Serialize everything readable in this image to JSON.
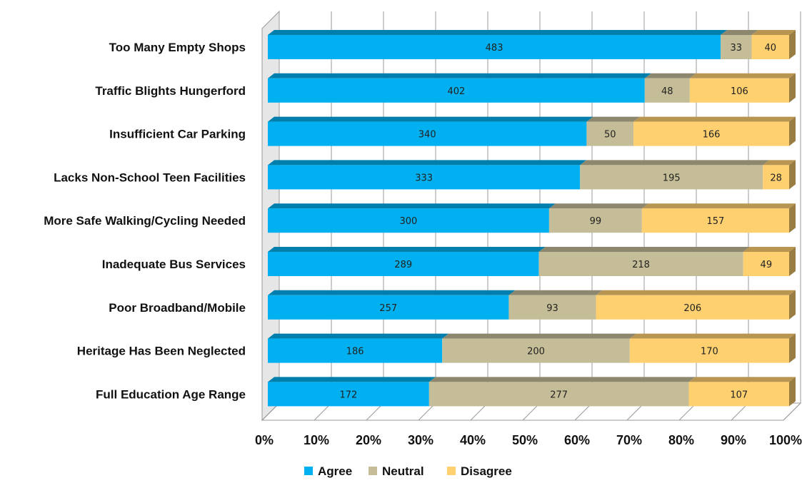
{
  "chart_data": {
    "type": "bar",
    "orientation": "horizontal",
    "stacked": "percent",
    "style": "3d",
    "categories": [
      "Too Many Empty Shops",
      "Traffic Blights Hungerford",
      "Insufficient Car Parking",
      "Lacks Non-School Teen Facilities",
      "More Safe Walking/Cycling Needed",
      "Inadequate Bus Services",
      "Poor Broadband/Mobile",
      "Heritage Has Been Neglected",
      "Full Education Age Range"
    ],
    "series": [
      {
        "name": "Agree",
        "color": "#00b0f0",
        "values": [
          483,
          402,
          340,
          333,
          300,
          289,
          257,
          186,
          172
        ]
      },
      {
        "name": "Neutral",
        "color": "#c4bd97",
        "values": [
          33,
          48,
          50,
          195,
          99,
          218,
          93,
          200,
          277
        ]
      },
      {
        "name": "Disagree",
        "color": "#ffd070",
        "values": [
          40,
          106,
          166,
          28,
          157,
          49,
          206,
          170,
          107
        ]
      }
    ],
    "xaxis": {
      "ticks": [
        "0%",
        "10%",
        "20%",
        "30%",
        "40%",
        "50%",
        "60%",
        "70%",
        "80%",
        "90%",
        "100%"
      ],
      "range": [
        0,
        100
      ]
    },
    "grid": true,
    "legend": {
      "position": "bottom"
    }
  }
}
